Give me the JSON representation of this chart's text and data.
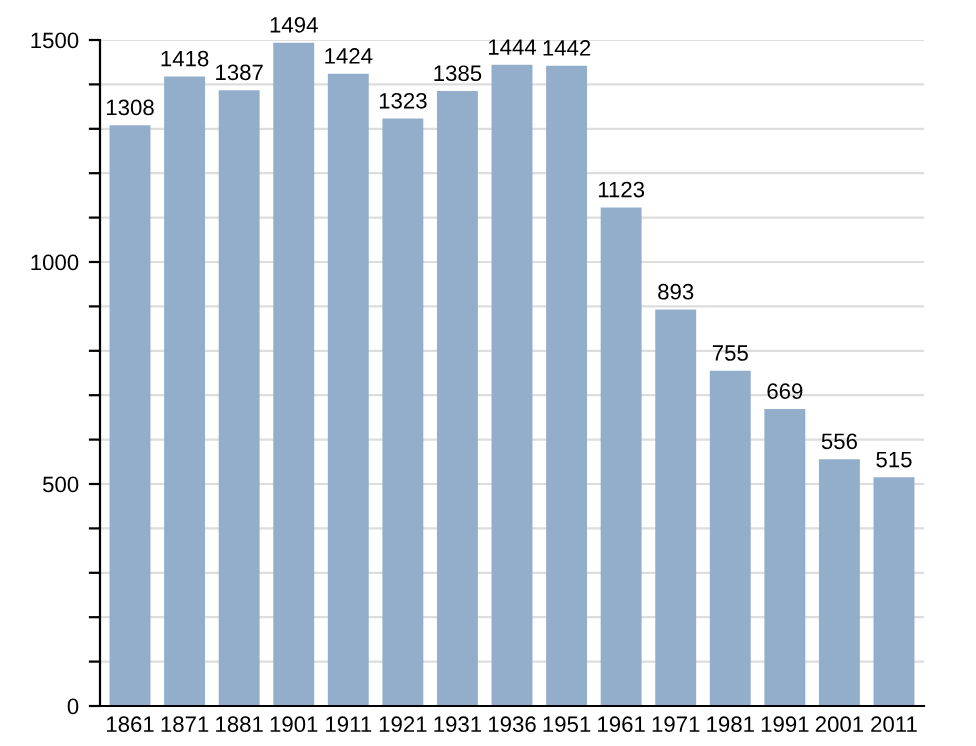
{
  "chart_data": {
    "type": "bar",
    "categories": [
      "1861",
      "1871",
      "1881",
      "1901",
      "1911",
      "1921",
      "1931",
      "1936",
      "1951",
      "1961",
      "1971",
      "1981",
      "1991",
      "2001",
      "2011"
    ],
    "values": [
      1308,
      1418,
      1387,
      1494,
      1424,
      1323,
      1385,
      1444,
      1442,
      1123,
      893,
      755,
      669,
      556,
      515
    ],
    "color": "#93aecb",
    "ylim": [
      0,
      1500
    ],
    "yticks": [
      0,
      {
        "value": 100,
        "label": null
      },
      {
        "value": 200,
        "label": null
      },
      {
        "value": 300,
        "label": null
      },
      {
        "value": 400,
        "label": null
      },
      500,
      {
        "value": 600,
        "label": null
      },
      {
        "value": 700,
        "label": null
      },
      {
        "value": 800,
        "label": null
      },
      {
        "value": 900,
        "label": null
      },
      1000,
      {
        "value": 1100,
        "label": null
      },
      {
        "value": 1200,
        "label": null
      },
      {
        "value": 1300,
        "label": null
      },
      {
        "value": 1400,
        "label": null
      },
      1500
    ],
    "grid": "y",
    "data_labels": true
  }
}
